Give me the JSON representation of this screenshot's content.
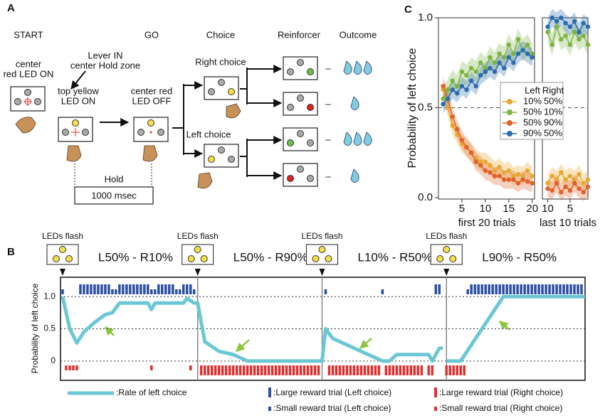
{
  "panel_a": {
    "label": "A",
    "stages": [
      "START",
      "GO",
      "Choice",
      "Reinforcer",
      "Outcome"
    ],
    "start_note": [
      "center",
      "red LED ON"
    ],
    "lever_note": [
      "Lever IN",
      "center Hold zone"
    ],
    "cue_note": [
      "top yellow",
      "LED ON"
    ],
    "go_note": [
      "center red",
      "LED OFF"
    ],
    "right_choice": "Right choice",
    "left_choice": "Left choice",
    "outcome_dash": "–",
    "hold": "Hold",
    "hold_duration": "1000 msec"
  },
  "panel_b": {
    "label": "B",
    "flash": "LEDs flash",
    "blocks": [
      "L50% - R10%",
      "L50% - R90%",
      "L10% - R50%",
      "L90% - R50%"
    ],
    "block_starts": [
      0,
      38,
      73,
      108
    ],
    "ylabel": "Probability of left choice",
    "xlim": [
      0,
      147
    ],
    "ylim": [
      -0.3,
      1.3
    ],
    "yticks": [
      0,
      0.5,
      {
        "value": 1,
        "label": "1.0"
      }
    ],
    "rate": {
      "name": ":Rate of left choice",
      "color": "#6cc7d4",
      "x": [
        0,
        2,
        4,
        6,
        9,
        12,
        14,
        16,
        24,
        25,
        26,
        34,
        35,
        37,
        38,
        40,
        44,
        48,
        50,
        52,
        72,
        73,
        74,
        76,
        80,
        84,
        86,
        88,
        90,
        92,
        94,
        103,
        104,
        106,
        107,
        null,
        108,
        112,
        124,
        147
      ],
      "values": [
        1,
        0.5,
        0.28,
        0.45,
        0.6,
        0.72,
        0.75,
        0.9,
        0.9,
        0.8,
        0.9,
        0.9,
        0.97,
        0.9,
        0.9,
        0.3,
        0.15,
        0.1,
        0.05,
        0,
        0,
        0,
        0.5,
        0.35,
        0.25,
        0.15,
        0.1,
        0.05,
        0,
        0,
        0.1,
        0.1,
        0,
        0.2,
        0.2,
        null,
        0,
        0,
        1,
        1
      ]
    },
    "large_left": {
      "name": ":Large reward trial (Left choice)",
      "color": "#2d4fa3",
      "trials": [
        5,
        6,
        7,
        8,
        9,
        10,
        11,
        12,
        13,
        16,
        17,
        18,
        19,
        20,
        21,
        22,
        23,
        24,
        27,
        28,
        29,
        30,
        31,
        34,
        35,
        36,
        105,
        106,
        115,
        116,
        117,
        118,
        119,
        120,
        121,
        122,
        123,
        124,
        125,
        126,
        127,
        128,
        129,
        130,
        131,
        132,
        133,
        134,
        135,
        136,
        137,
        138,
        139,
        140,
        141,
        142,
        143,
        144,
        145,
        146
      ]
    },
    "small_left": {
      "name": ":Small reward trial (Left choice)",
      "color": "#2d4fa3",
      "trials": [
        0,
        14,
        15,
        25,
        26,
        32,
        33,
        37,
        74,
        90,
        114
      ]
    },
    "large_right": {
      "name": ":Large reward trial (Right choice)",
      "color": "#e03030",
      "trials": [
        39,
        40,
        41,
        42,
        43,
        44,
        45,
        46,
        47,
        48,
        49,
        50,
        51,
        52,
        53,
        54,
        55,
        56,
        57,
        58,
        59,
        60,
        61,
        62,
        63,
        64,
        65,
        66,
        67,
        68,
        69,
        70,
        71,
        72,
        75,
        76,
        77,
        78,
        79,
        80,
        81,
        82,
        83,
        84,
        85,
        86,
        87,
        88,
        89,
        91,
        92,
        93,
        94,
        95,
        96,
        97,
        98,
        99,
        100,
        101,
        103,
        104,
        108,
        109,
        110,
        111,
        112,
        113
      ]
    },
    "small_right": {
      "name": ":Small reward trial (Right choice)",
      "color": "#e03030",
      "trials": [
        1,
        2,
        3,
        4,
        25,
        36
      ]
    }
  },
  "panel_c": {
    "label": "C",
    "ylabel": "Probability of left choice",
    "ylim": [
      0,
      1
    ],
    "yticks": [
      {
        "value": 0,
        "label": "0.0"
      },
      0.5,
      {
        "value": 1,
        "label": "1.0"
      }
    ],
    "refline": 0.5,
    "first": {
      "xlabel": "first 20 trials",
      "xlim": [
        0,
        20.5
      ],
      "xticks": [
        5,
        10,
        15,
        20
      ],
      "x": [
        1,
        2,
        3,
        4,
        5,
        6,
        7,
        8,
        9,
        10,
        11,
        12,
        13,
        14,
        15,
        16,
        17,
        18,
        19,
        20
      ]
    },
    "last": {
      "xlabel": "last 10 trials",
      "xlim": [
        11.2,
        1
      ],
      "xticks": [
        10,
        5
      ],
      "x": [
        10,
        9,
        8,
        7,
        6,
        5,
        4,
        3,
        2,
        1
      ]
    },
    "legend_header": [
      "Left",
      "Right"
    ],
    "series": [
      {
        "left": "10%",
        "right": "50%",
        "color": "#e8a830",
        "sem": 0.05,
        "first": [
          0.6,
          0.5,
          0.4,
          0.35,
          0.3,
          0.28,
          0.25,
          0.22,
          0.2,
          0.2,
          0.18,
          0.15,
          0.17,
          0.14,
          0.15,
          0.12,
          0.13,
          0.12,
          0.15,
          0.12
        ],
        "last": [
          0.08,
          0.12,
          0.1,
          0.14,
          0.1,
          0.12,
          0.1,
          0.13,
          0.08,
          0.1
        ]
      },
      {
        "left": "50%",
        "right": "10%",
        "color": "#7cb342",
        "sem": 0.06,
        "first": [
          0.55,
          0.6,
          0.65,
          0.62,
          0.7,
          0.68,
          0.72,
          0.7,
          0.75,
          0.72,
          0.78,
          0.75,
          0.8,
          0.78,
          0.85,
          0.8,
          0.88,
          0.82,
          0.85,
          0.8
        ],
        "last": [
          0.92,
          0.85,
          0.95,
          0.88,
          0.9,
          0.85,
          0.92,
          0.88,
          0.9,
          0.85
        ]
      },
      {
        "left": "50%",
        "right": "90%",
        "color": "#e0622a",
        "sem": 0.05,
        "first": [
          0.62,
          0.55,
          0.45,
          0.38,
          0.32,
          0.28,
          0.25,
          0.2,
          0.18,
          0.15,
          0.14,
          0.12,
          0.12,
          0.1,
          0.1,
          0.1,
          0.08,
          0.1,
          0.09,
          0.08
        ],
        "last": [
          0.05,
          0.04,
          0.08,
          0.03,
          0.06,
          0.04,
          0.08,
          0.05,
          0.03,
          0.06
        ]
      },
      {
        "left": "90%",
        "right": "50%",
        "color": "#2b6cb0",
        "sem": 0.05,
        "first": [
          0.52,
          0.55,
          0.6,
          0.58,
          0.62,
          0.6,
          0.65,
          0.62,
          0.68,
          0.7,
          0.72,
          0.7,
          0.75,
          0.72,
          0.78,
          0.75,
          0.8,
          0.82,
          0.8,
          0.78
        ],
        "last": [
          0.95,
          1,
          0.98,
          1,
          0.97,
          0.95,
          0.98,
          0.92,
          0.97,
          0.95
        ]
      }
    ]
  }
}
